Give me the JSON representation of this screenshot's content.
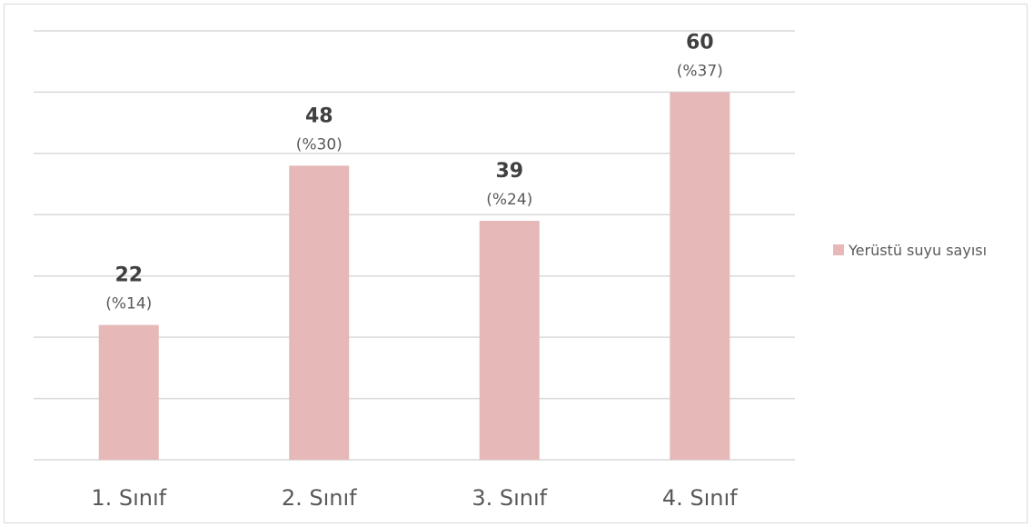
{
  "chart_data": {
    "type": "bar",
    "categories": [
      "1. Sınıf",
      "2. Sınıf",
      "3. Sınıf",
      "4. Sınıf"
    ],
    "series": [
      {
        "name": "Yerüstü suyu sayısı",
        "values": [
          22,
          48,
          39,
          60
        ],
        "color": "#e6b8b7"
      }
    ],
    "data_labels": [
      "22",
      "48",
      "39",
      "60"
    ],
    "percent_labels": [
      "(%14)",
      "(%30)",
      "(%24)",
      "(%37)"
    ],
    "ylim": [
      0,
      70
    ],
    "grid": true,
    "legend_position": "right",
    "title": "",
    "xlabel": "",
    "ylabel": ""
  }
}
